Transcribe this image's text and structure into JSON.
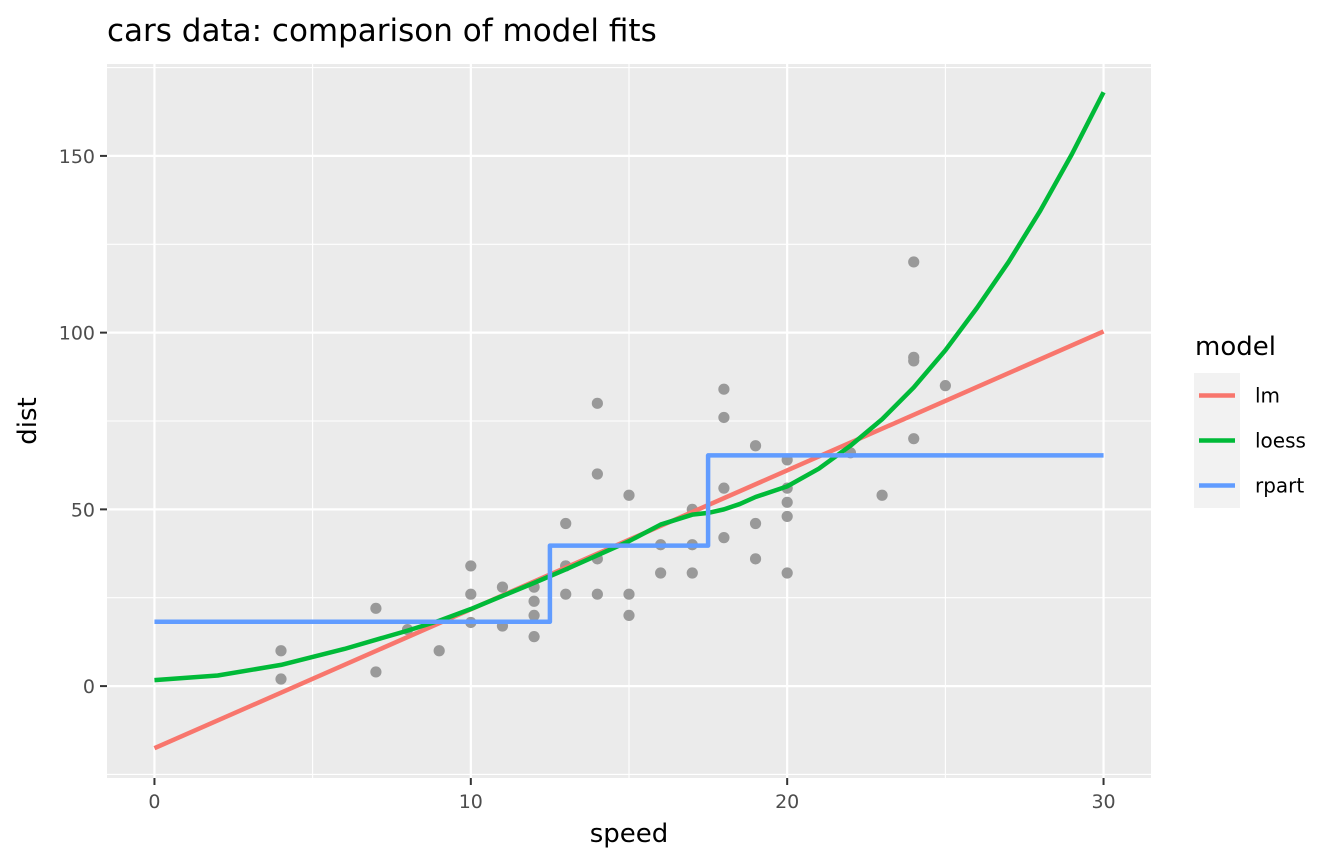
{
  "chart_data": {
    "type": "scatter",
    "title": "cars data: comparison of model fits",
    "xlabel": "speed",
    "ylabel": "dist",
    "xlim": [
      -1.5,
      31.5
    ],
    "ylim": [
      -26,
      176
    ],
    "x_ticks": [
      0,
      10,
      20,
      30
    ],
    "y_ticks": [
      0,
      50,
      100,
      150
    ],
    "grid": true,
    "legend_position": "right",
    "legend_title": "model",
    "colors": {
      "panel_background": "#ebebeb",
      "grid": "#ffffff",
      "points": "#999999",
      "lm": "#f8766d",
      "loess": "#00ba38",
      "rpart": "#619cff"
    },
    "points": {
      "x": [
        4,
        4,
        7,
        7,
        8,
        9,
        10,
        10,
        10,
        11,
        11,
        12,
        12,
        12,
        12,
        13,
        13,
        13,
        13,
        14,
        14,
        14,
        14,
        15,
        15,
        15,
        16,
        16,
        17,
        17,
        17,
        18,
        18,
        18,
        18,
        19,
        19,
        19,
        20,
        20,
        20,
        20,
        20,
        22,
        23,
        24,
        24,
        24,
        24,
        25
      ],
      "y": [
        2,
        10,
        4,
        22,
        16,
        10,
        18,
        26,
        34,
        17,
        28,
        14,
        20,
        24,
        28,
        26,
        34,
        34,
        46,
        26,
        36,
        60,
        80,
        20,
        26,
        54,
        32,
        40,
        32,
        40,
        50,
        42,
        56,
        76,
        84,
        36,
        46,
        68,
        32,
        48,
        52,
        56,
        64,
        66,
        54,
        70,
        92,
        93,
        120,
        85
      ]
    },
    "series": [
      {
        "name": "lm",
        "x": [
          0,
          30
        ],
        "y": [
          -17.58,
          100.34
        ]
      },
      {
        "name": "loess",
        "x": [
          0,
          2,
          4,
          6,
          8,
          9,
          10,
          11,
          12,
          13,
          14,
          15,
          16,
          17,
          17.5,
          18,
          18.5,
          19,
          20,
          21,
          22,
          23,
          24,
          25,
          26,
          27,
          28,
          29,
          30
        ],
        "y": [
          1.7,
          3.0,
          6.0,
          10.5,
          15.7,
          18.5,
          21.8,
          25.5,
          29.2,
          33.0,
          37.0,
          41.0,
          45.7,
          48.5,
          49.0,
          50.0,
          51.5,
          53.5,
          56.5,
          61.5,
          68.0,
          75.5,
          84.5,
          95.0,
          107.0,
          120.0,
          134.5,
          150.5,
          168.0
        ]
      },
      {
        "name": "rpart",
        "x": [
          0,
          12.5,
          12.5,
          17.5,
          17.5,
          30
        ],
        "y": [
          18.2,
          18.2,
          39.75,
          39.75,
          65.26,
          65.26
        ]
      }
    ]
  }
}
